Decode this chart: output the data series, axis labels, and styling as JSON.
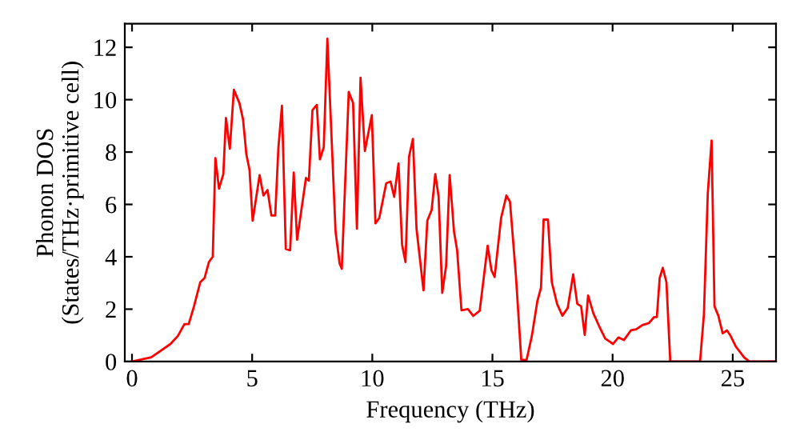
{
  "chart_data": {
    "type": "line",
    "xlabel": "Frequency (THz)",
    "ylabel": "Phonon DOS\n(States/THz·primitive cell)",
    "xlim": [
      -0.3,
      26.8
    ],
    "ylim": [
      0,
      12.9
    ],
    "xticks": [
      0,
      5,
      10,
      15,
      20,
      25
    ],
    "yticks": [
      0,
      2,
      4,
      6,
      8,
      10,
      12
    ],
    "grid": false,
    "legend": false,
    "marker": "none",
    "line_style": "solid",
    "series": [
      {
        "color": "#ff0000",
        "x": [
          0,
          0.8,
          1.6,
          1.91,
          2.18,
          2.36,
          2.58,
          2.84,
          3.02,
          3.2,
          3.36,
          3.47,
          3.62,
          3.8,
          3.91,
          4.07,
          4.24,
          4.47,
          4.62,
          4.76,
          4.89,
          5.02,
          5.31,
          5.47,
          5.64,
          5.8,
          5.96,
          6.09,
          6.24,
          6.4,
          6.58,
          6.73,
          6.87,
          7.24,
          7.36,
          7.51,
          7.69,
          7.82,
          7.98,
          8.13,
          8.47,
          8.64,
          8.73,
          9.02,
          9.2,
          9.36,
          9.51,
          9.69,
          9.98,
          10.13,
          10.29,
          10.58,
          10.76,
          10.91,
          11.09,
          11.24,
          11.38,
          11.53,
          11.69,
          11.84,
          12.13,
          12.29,
          12.47,
          12.62,
          12.76,
          12.91,
          13.07,
          13.22,
          13.4,
          13.53,
          13.71,
          13.98,
          14.2,
          14.47,
          14.8,
          14.96,
          15.09,
          15.36,
          15.58,
          15.73,
          15.98,
          16.2,
          16.42,
          16.64,
          16.87,
          17.02,
          17.13,
          17.31,
          17.47,
          17.69,
          17.91,
          18.13,
          18.36,
          18.53,
          18.69,
          18.84,
          18.98,
          19.2,
          19.47,
          19.69,
          20.02,
          20.24,
          20.47,
          20.76,
          20.98,
          21.24,
          21.51,
          21.73,
          21.84,
          21.96,
          22.09,
          22.24,
          22.4,
          23.64,
          23.8,
          23.96,
          24.12,
          24.24,
          24.4,
          24.58,
          24.76,
          24.91,
          25.13,
          25.47,
          25.69,
          26.8
        ],
        "values": [
          0,
          0.16,
          0.67,
          0.98,
          1.43,
          1.43,
          2.11,
          3.03,
          3.19,
          3.8,
          4.0,
          7.77,
          6.6,
          7.16,
          9.3,
          8.13,
          10.38,
          9.87,
          9.25,
          7.9,
          7.32,
          5.38,
          7.12,
          6.34,
          6.55,
          5.58,
          5.58,
          8.14,
          9.77,
          4.3,
          4.25,
          7.22,
          4.65,
          7.01,
          6.91,
          9.6,
          9.8,
          7.72,
          8.18,
          12.33,
          4.97,
          3.74,
          3.54,
          10.3,
          9.87,
          5.07,
          10.84,
          8.04,
          9.41,
          5.28,
          5.48,
          6.81,
          6.87,
          6.29,
          7.56,
          4.46,
          3.8,
          7.83,
          8.5,
          5.07,
          2.72,
          5.38,
          5.79,
          7.16,
          6.29,
          2.62,
          3.64,
          7.12,
          4.97,
          4.25,
          1.96,
          2.0,
          1.74,
          1.94,
          4.42,
          3.48,
          3.23,
          5.48,
          6.34,
          6.1,
          3.23,
          0.06,
          0.06,
          0.98,
          2.31,
          2.82,
          5.42,
          5.42,
          3.03,
          2.2,
          1.75,
          2.04,
          3.33,
          2.2,
          2.11,
          1.02,
          2.52,
          1.84,
          1.29,
          0.88,
          0.67,
          0.92,
          0.82,
          1.19,
          1.23,
          1.39,
          1.47,
          1.7,
          1.7,
          3.19,
          3.58,
          3.03,
          0,
          0,
          1.8,
          6.4,
          8.44,
          2.11,
          1.75,
          1.08,
          1.19,
          0.98,
          0.57,
          0.16,
          0,
          0
        ]
      }
    ]
  }
}
